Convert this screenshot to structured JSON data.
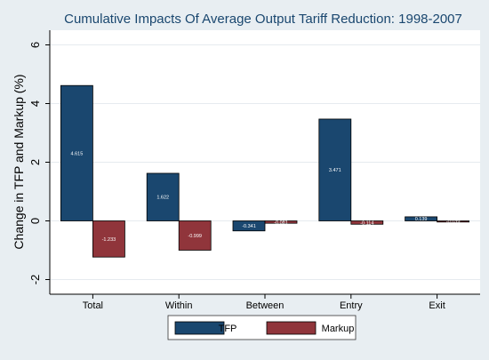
{
  "chart_data": {
    "type": "bar",
    "title": "Cumulative Impacts Of Average Output Tariff Reduction: 1998-2007",
    "xlabel": "",
    "ylabel": "Change in TFP and Markup (%)",
    "categories": [
      "Total",
      "Within",
      "Between",
      "Entry",
      "Exit"
    ],
    "series": [
      {
        "name": "TFP",
        "color": "#1a476f",
        "values": [
          4.615,
          1.622,
          -0.341,
          3.471,
          0.139
        ],
        "labels": [
          "4.615",
          "1.622",
          "-0.341",
          "3.471",
          "0.139"
        ]
      },
      {
        "name": "Markup",
        "color": "#90353b",
        "values": [
          -1.233,
          -0.999,
          -0.081,
          -0.114,
          -0.039
        ],
        "labels": [
          "-1.233",
          "-0.999",
          "-0.081",
          "-0.114",
          "-0.039"
        ]
      }
    ],
    "ylim": [
      -2.5,
      6.5
    ],
    "yticks": [
      -2,
      0,
      2,
      4,
      6
    ],
    "ytick_labels": [
      "-2",
      "0",
      "2",
      "4",
      "6"
    ],
    "grid": true,
    "legend_position": "bottom"
  }
}
